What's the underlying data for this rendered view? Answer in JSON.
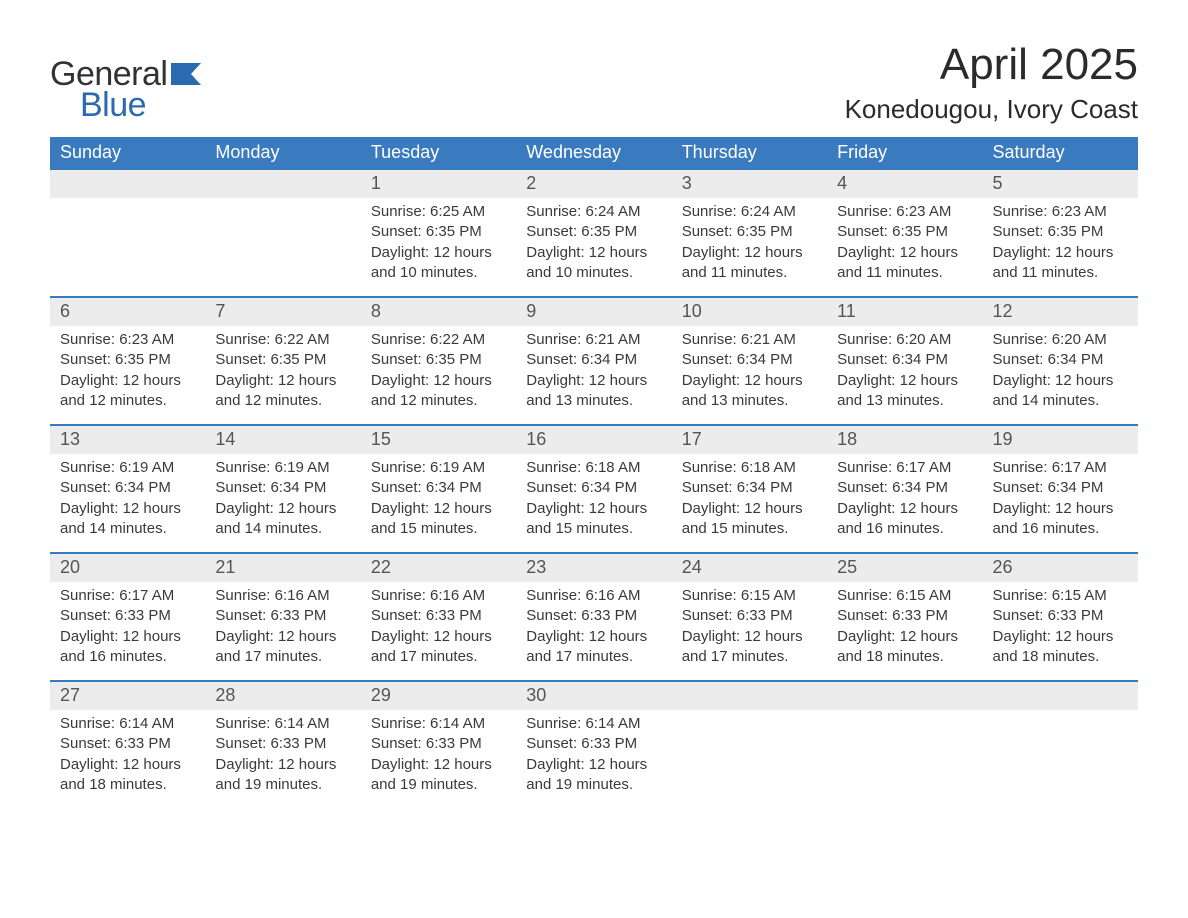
{
  "logo": {
    "word1": "General",
    "word2": "Blue",
    "text_color": "#323232",
    "accent_color": "#2a6bb0"
  },
  "title": {
    "month": "April 2025",
    "location": "Konedougou, Ivory Coast",
    "title_fontsize": 44,
    "location_fontsize": 26
  },
  "calendar": {
    "type": "table",
    "header_bg": "#3a7bbf",
    "header_fg": "#ffffff",
    "band_bg": "#ececec",
    "row_border": "#3a7bbf",
    "body_fg": "#3a3a3a",
    "background_color": "#ffffff",
    "columns": [
      "Sunday",
      "Monday",
      "Tuesday",
      "Wednesday",
      "Thursday",
      "Friday",
      "Saturday"
    ],
    "weeks": [
      [
        null,
        null,
        {
          "n": "1",
          "sr": "Sunrise: 6:25 AM",
          "ss": "Sunset: 6:35 PM",
          "dl": "Daylight: 12 hours and 10 minutes."
        },
        {
          "n": "2",
          "sr": "Sunrise: 6:24 AM",
          "ss": "Sunset: 6:35 PM",
          "dl": "Daylight: 12 hours and 10 minutes."
        },
        {
          "n": "3",
          "sr": "Sunrise: 6:24 AM",
          "ss": "Sunset: 6:35 PM",
          "dl": "Daylight: 12 hours and 11 minutes."
        },
        {
          "n": "4",
          "sr": "Sunrise: 6:23 AM",
          "ss": "Sunset: 6:35 PM",
          "dl": "Daylight: 12 hours and 11 minutes."
        },
        {
          "n": "5",
          "sr": "Sunrise: 6:23 AM",
          "ss": "Sunset: 6:35 PM",
          "dl": "Daylight: 12 hours and 11 minutes."
        }
      ],
      [
        {
          "n": "6",
          "sr": "Sunrise: 6:23 AM",
          "ss": "Sunset: 6:35 PM",
          "dl": "Daylight: 12 hours and 12 minutes."
        },
        {
          "n": "7",
          "sr": "Sunrise: 6:22 AM",
          "ss": "Sunset: 6:35 PM",
          "dl": "Daylight: 12 hours and 12 minutes."
        },
        {
          "n": "8",
          "sr": "Sunrise: 6:22 AM",
          "ss": "Sunset: 6:35 PM",
          "dl": "Daylight: 12 hours and 12 minutes."
        },
        {
          "n": "9",
          "sr": "Sunrise: 6:21 AM",
          "ss": "Sunset: 6:34 PM",
          "dl": "Daylight: 12 hours and 13 minutes."
        },
        {
          "n": "10",
          "sr": "Sunrise: 6:21 AM",
          "ss": "Sunset: 6:34 PM",
          "dl": "Daylight: 12 hours and 13 minutes."
        },
        {
          "n": "11",
          "sr": "Sunrise: 6:20 AM",
          "ss": "Sunset: 6:34 PM",
          "dl": "Daylight: 12 hours and 13 minutes."
        },
        {
          "n": "12",
          "sr": "Sunrise: 6:20 AM",
          "ss": "Sunset: 6:34 PM",
          "dl": "Daylight: 12 hours and 14 minutes."
        }
      ],
      [
        {
          "n": "13",
          "sr": "Sunrise: 6:19 AM",
          "ss": "Sunset: 6:34 PM",
          "dl": "Daylight: 12 hours and 14 minutes."
        },
        {
          "n": "14",
          "sr": "Sunrise: 6:19 AM",
          "ss": "Sunset: 6:34 PM",
          "dl": "Daylight: 12 hours and 14 minutes."
        },
        {
          "n": "15",
          "sr": "Sunrise: 6:19 AM",
          "ss": "Sunset: 6:34 PM",
          "dl": "Daylight: 12 hours and 15 minutes."
        },
        {
          "n": "16",
          "sr": "Sunrise: 6:18 AM",
          "ss": "Sunset: 6:34 PM",
          "dl": "Daylight: 12 hours and 15 minutes."
        },
        {
          "n": "17",
          "sr": "Sunrise: 6:18 AM",
          "ss": "Sunset: 6:34 PM",
          "dl": "Daylight: 12 hours and 15 minutes."
        },
        {
          "n": "18",
          "sr": "Sunrise: 6:17 AM",
          "ss": "Sunset: 6:34 PM",
          "dl": "Daylight: 12 hours and 16 minutes."
        },
        {
          "n": "19",
          "sr": "Sunrise: 6:17 AM",
          "ss": "Sunset: 6:34 PM",
          "dl": "Daylight: 12 hours and 16 minutes."
        }
      ],
      [
        {
          "n": "20",
          "sr": "Sunrise: 6:17 AM",
          "ss": "Sunset: 6:33 PM",
          "dl": "Daylight: 12 hours and 16 minutes."
        },
        {
          "n": "21",
          "sr": "Sunrise: 6:16 AM",
          "ss": "Sunset: 6:33 PM",
          "dl": "Daylight: 12 hours and 17 minutes."
        },
        {
          "n": "22",
          "sr": "Sunrise: 6:16 AM",
          "ss": "Sunset: 6:33 PM",
          "dl": "Daylight: 12 hours and 17 minutes."
        },
        {
          "n": "23",
          "sr": "Sunrise: 6:16 AM",
          "ss": "Sunset: 6:33 PM",
          "dl": "Daylight: 12 hours and 17 minutes."
        },
        {
          "n": "24",
          "sr": "Sunrise: 6:15 AM",
          "ss": "Sunset: 6:33 PM",
          "dl": "Daylight: 12 hours and 17 minutes."
        },
        {
          "n": "25",
          "sr": "Sunrise: 6:15 AM",
          "ss": "Sunset: 6:33 PM",
          "dl": "Daylight: 12 hours and 18 minutes."
        },
        {
          "n": "26",
          "sr": "Sunrise: 6:15 AM",
          "ss": "Sunset: 6:33 PM",
          "dl": "Daylight: 12 hours and 18 minutes."
        }
      ],
      [
        {
          "n": "27",
          "sr": "Sunrise: 6:14 AM",
          "ss": "Sunset: 6:33 PM",
          "dl": "Daylight: 12 hours and 18 minutes."
        },
        {
          "n": "28",
          "sr": "Sunrise: 6:14 AM",
          "ss": "Sunset: 6:33 PM",
          "dl": "Daylight: 12 hours and 19 minutes."
        },
        {
          "n": "29",
          "sr": "Sunrise: 6:14 AM",
          "ss": "Sunset: 6:33 PM",
          "dl": "Daylight: 12 hours and 19 minutes."
        },
        {
          "n": "30",
          "sr": "Sunrise: 6:14 AM",
          "ss": "Sunset: 6:33 PM",
          "dl": "Daylight: 12 hours and 19 minutes."
        },
        null,
        null,
        null
      ]
    ]
  }
}
